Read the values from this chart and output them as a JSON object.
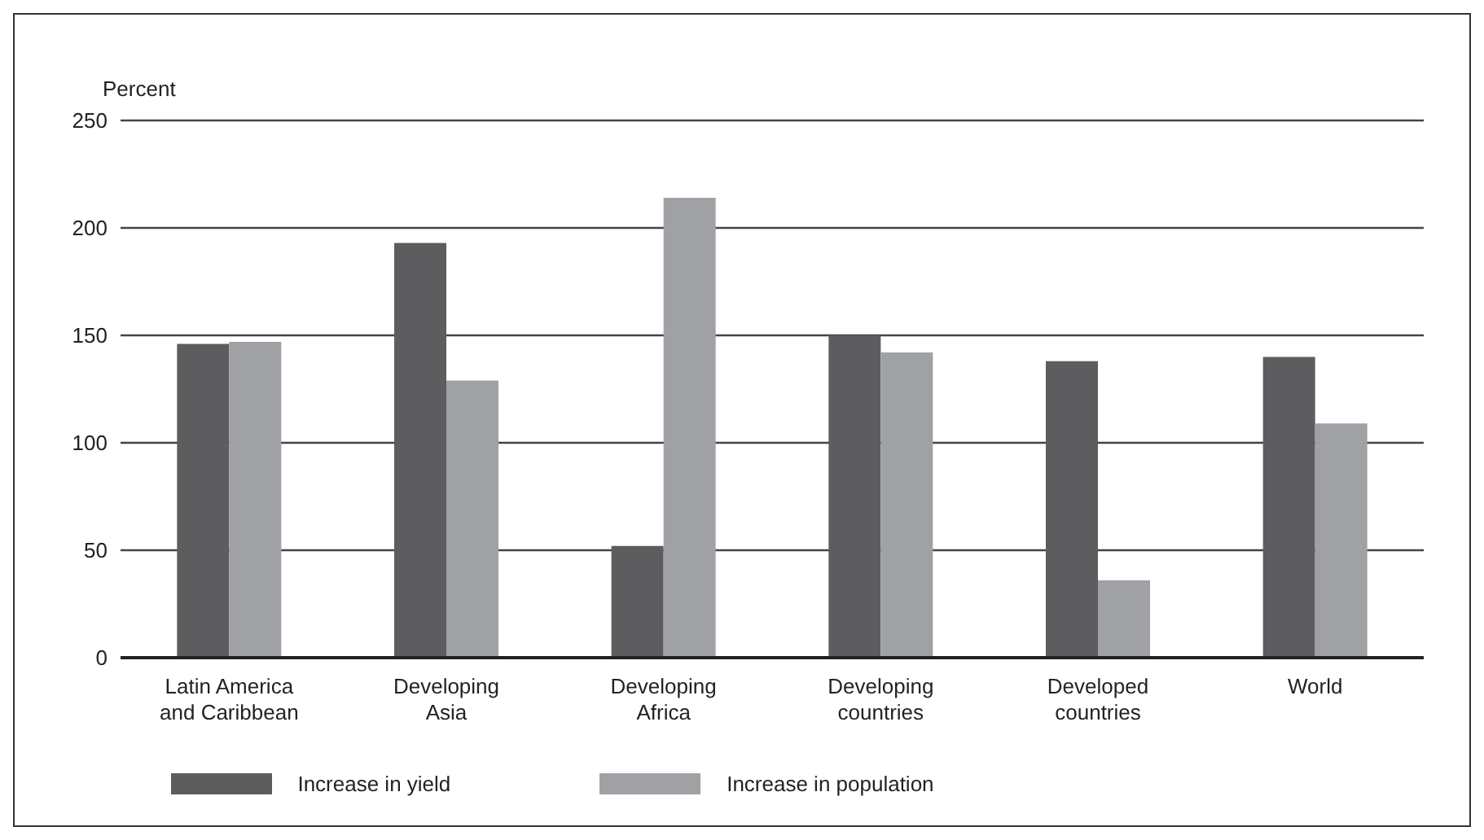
{
  "chart_data": {
    "type": "bar",
    "ylabel": "Percent",
    "categories": [
      "Latin America and Caribbean",
      "Developing Asia",
      "Developing Africa",
      "Developing countries",
      "Developed countries",
      "World"
    ],
    "series": [
      {
        "name": "Increase in yield",
        "color": "#5d5d60",
        "values": [
          146,
          193,
          52,
          150,
          138,
          140
        ]
      },
      {
        "name": "Increase in population",
        "color": "#a0a1a4",
        "values": [
          147,
          129,
          214,
          142,
          36,
          109
        ]
      }
    ],
    "ylim": [
      0,
      250
    ],
    "yticks": [
      0,
      50,
      100,
      150,
      200,
      250
    ],
    "grid": "y",
    "legend": "bottom"
  }
}
